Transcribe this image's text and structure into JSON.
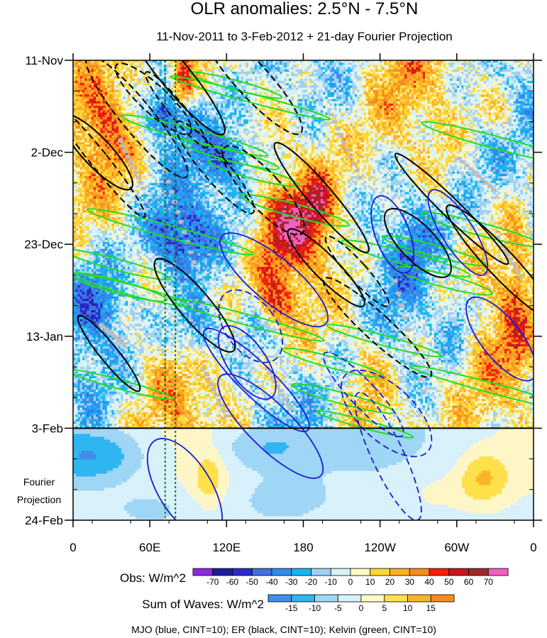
{
  "chart_data": {
    "type": "heatmap",
    "title": "OLR anomalies: 2.5°N - 7.5°N",
    "subtitle": "11-Nov-2011 to 3-Feb-2012 + 21-day Fourier Projection",
    "xlabel": "",
    "ylabel": "",
    "x_ticks": [
      "0",
      "60E",
      "120E",
      "180",
      "120W",
      "60W",
      "0"
    ],
    "x_range_deg_east": [
      0,
      360
    ],
    "y_ticks": [
      "11-Nov",
      "2-Dec",
      "23-Dec",
      "13-Jan",
      "3-Feb",
      "24-Feb"
    ],
    "y_range_days": [
      0,
      105
    ],
    "projection_start_day": 84,
    "projection_label": [
      "Fourier",
      "Projection"
    ],
    "reference_longitudes_deg": [
      72,
      80
    ],
    "obs_colorbar": {
      "title": "Obs: W/m^2",
      "levels": [
        -70,
        -60,
        -50,
        -40,
        -30,
        -20,
        -10,
        0,
        10,
        20,
        30,
        40,
        50,
        60,
        70
      ],
      "level_labels": [
        "-70",
        "-60",
        "-50",
        "-40",
        "-30",
        "-20",
        "-10",
        "0",
        "10",
        "20",
        "30",
        "40",
        "50",
        "60",
        "70"
      ],
      "colors": [
        "#8a2be2",
        "#1e1e9c",
        "#2a2acc",
        "#3f6fe0",
        "#2f8ff0",
        "#19b6f0",
        "#9ed0f5",
        "#d6f2fb",
        "#fffbc4",
        "#fdd836",
        "#fbb028",
        "#f78c1e",
        "#f51e0e",
        "#c8141e",
        "#a02828",
        "#f060c0"
      ]
    },
    "waves_colorbar": {
      "title": "Sum of Waves: W/m^2",
      "levels": [
        -15,
        -10,
        -5,
        0,
        5,
        10,
        15
      ],
      "level_labels": [
        "-15",
        "-10",
        "-5",
        "0",
        "5",
        "10",
        "15"
      ],
      "colors": [
        "#3f8fe8",
        "#2fb5f0",
        "#9fd6f5",
        "#d8f1fb",
        "#fffbc8",
        "#fde04a",
        "#fbb42a",
        "#f78c1e"
      ]
    },
    "series": [
      {
        "name": "MJO",
        "color": "#1a1ad6",
        "cint": 10
      },
      {
        "name": "ER",
        "color": "#000000",
        "cint": 10
      },
      {
        "name": "Kelvin",
        "color": "#22dd22",
        "cint": 10
      }
    ],
    "footnote": "MJO (blue, CINT=10); ER (black, CINT=10); Kelvin (green, CINT=10)"
  }
}
